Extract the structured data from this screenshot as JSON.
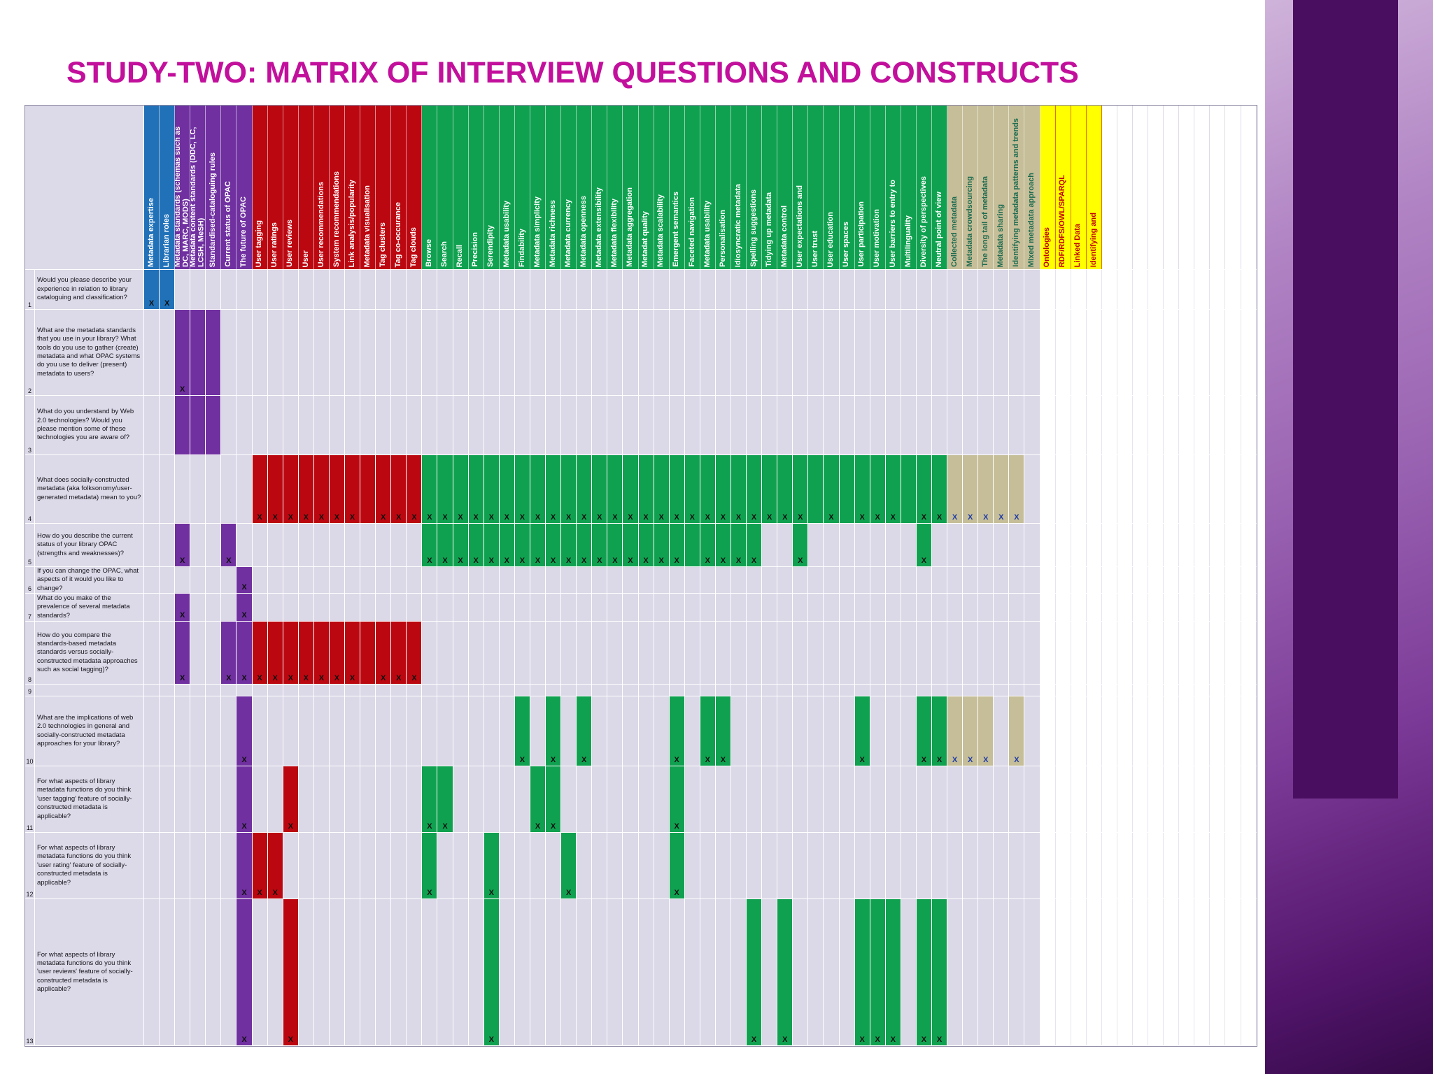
{
  "slide": {
    "title": "STUDY-TWO: MATRIX OF INTERVIEW QUESTIONS AND CONSTRUCTS",
    "title_color": "#C2109C"
  },
  "matrix": {
    "mark_glyph": "X",
    "colors": {
      "mark": "#101010",
      "mark_tan": "#1F3BA8",
      "body_cell": "#DBD8E7"
    },
    "groups": {
      "blue": {
        "color": "#2171B8",
        "text_color": "#FFFFFF"
      },
      "purple": {
        "color": "#7030A0",
        "text_color": "#FFFFFF"
      },
      "red": {
        "color": "#BB0710",
        "text_color": "#FFFFFF"
      },
      "green": {
        "color": "#10A150",
        "text_color": "#FFFFFF"
      },
      "tan": {
        "color": "#C5BE98",
        "text_color": "#1E6B50"
      },
      "yellow": {
        "color": "#FFFF00",
        "text_color": "#C00000"
      },
      "plain": {
        "color": "#FFFFFF",
        "text_color": "#333333"
      }
    },
    "columns": [
      {
        "label": "Metadata expertise",
        "group": "blue"
      },
      {
        "label": "Librarian roles",
        "group": "blue"
      },
      {
        "label": "Metadata standards (schemas such as DC, MARC, MODS)",
        "group": "purple"
      },
      {
        "label": "Metadata content standards (DDC, LC, LCSH, MeSH)",
        "group": "purple"
      },
      {
        "label": "Standardised-cataloguing rules",
        "group": "purple"
      },
      {
        "label": "Current status of OPAC",
        "group": "purple"
      },
      {
        "label": "The future of OPAC",
        "group": "purple"
      },
      {
        "label": "User tagging",
        "group": "red"
      },
      {
        "label": "User ratings",
        "group": "red"
      },
      {
        "label": "User reviews",
        "group": "red"
      },
      {
        "label": "User",
        "group": "red"
      },
      {
        "label": "User recommendations",
        "group": "red"
      },
      {
        "label": "System recommendations",
        "group": "red"
      },
      {
        "label": "Link analysis/popularity",
        "group": "red"
      },
      {
        "label": "Metadata visualisation",
        "group": "red"
      },
      {
        "label": "Tag clusters",
        "group": "red"
      },
      {
        "label": "Tag co-occurance",
        "group": "red"
      },
      {
        "label": "Tag clouds",
        "group": "red"
      },
      {
        "label": "Browse",
        "group": "green"
      },
      {
        "label": "Search",
        "group": "green"
      },
      {
        "label": "Recall",
        "group": "green"
      },
      {
        "label": "Precision",
        "group": "green"
      },
      {
        "label": "Serendipity",
        "group": "green"
      },
      {
        "label": "Metadata usability",
        "group": "green"
      },
      {
        "label": "Findability",
        "group": "green"
      },
      {
        "label": "Metadata simplicity",
        "group": "green"
      },
      {
        "label": "Metadata richness",
        "group": "green"
      },
      {
        "label": "Metadata currency",
        "group": "green"
      },
      {
        "label": "Metadata openness",
        "group": "green"
      },
      {
        "label": "Metadata extensibility",
        "group": "green"
      },
      {
        "label": "Metadata flexibility",
        "group": "green"
      },
      {
        "label": "Metadata aggregation",
        "group": "green"
      },
      {
        "label": "Metadat quality",
        "group": "green"
      },
      {
        "label": "Metadata scalability",
        "group": "green"
      },
      {
        "label": "Emergent semantics",
        "group": "green"
      },
      {
        "label": "Faceted navigation",
        "group": "green"
      },
      {
        "label": "Metadata usability",
        "group": "green"
      },
      {
        "label": "Personalisation",
        "group": "green"
      },
      {
        "label": "Idiosyncratic metadata",
        "group": "green"
      },
      {
        "label": "Spelling suggestions",
        "group": "green"
      },
      {
        "label": "Tidying up metadata",
        "group": "green"
      },
      {
        "label": "Metadata control",
        "group": "green"
      },
      {
        "label": "User expectations and",
        "group": "green"
      },
      {
        "label": "User trust",
        "group": "green"
      },
      {
        "label": "User education",
        "group": "green"
      },
      {
        "label": "User spaces",
        "group": "green"
      },
      {
        "label": "User participation",
        "group": "green"
      },
      {
        "label": "User motivation",
        "group": "green"
      },
      {
        "label": "User barriers to entry to",
        "group": "green"
      },
      {
        "label": "Multilinguality",
        "group": "green"
      },
      {
        "label": "Diversity of perspectives",
        "group": "green"
      },
      {
        "label": "Neutral point of view",
        "group": "green"
      },
      {
        "label": "Collected metadata",
        "group": "tan"
      },
      {
        "label": "Metadata crowdsourcing",
        "group": "tan"
      },
      {
        "label": "The long tail of metadata",
        "group": "tan"
      },
      {
        "label": "Metadata sharing",
        "group": "tan"
      },
      {
        "label": "Identifying metadata patterns and trends",
        "group": "tan"
      },
      {
        "label": "Mixed metadata approach",
        "group": "tan"
      },
      {
        "label": "Ontologies",
        "group": "yellow"
      },
      {
        "label": "RDF/RDFS/OWL/SPARQL",
        "group": "yellow"
      },
      {
        "label": "Linked Data",
        "group": "yellow"
      },
      {
        "label": "Identifying and",
        "group": "yellow"
      },
      {
        "label": "",
        "group": "plain"
      },
      {
        "label": "",
        "group": "plain"
      },
      {
        "label": "",
        "group": "plain"
      },
      {
        "label": "",
        "group": "plain"
      },
      {
        "label": "",
        "group": "plain"
      },
      {
        "label": "",
        "group": "plain"
      },
      {
        "label": "",
        "group": "plain"
      },
      {
        "label": "",
        "group": "plain"
      },
      {
        "label": "",
        "group": "plain"
      },
      {
        "label": "",
        "group": "plain"
      }
    ],
    "rows": [
      {
        "num": "1",
        "question": "Would you please describe your experience in relation to library cataloguing and classification?",
        "marks": [
          0,
          1
        ],
        "bands": [
          {
            "from": 0,
            "to": 1,
            "group": "blue"
          }
        ]
      },
      {
        "num": "2",
        "question": "What are the metadata standards that you use in your library? What tools do you use to gather (create) metadata and what OPAC systems do you use to deliver (present) metadata to users?",
        "marks": [
          2
        ],
        "bands": [
          {
            "from": 2,
            "to": 4,
            "group": "purple"
          }
        ]
      },
      {
        "num": "3",
        "question": "What do you understand by Web 2.0 technologies? Would you please mention some of these technologies you are aware of?",
        "marks": [],
        "bands": [
          {
            "from": 2,
            "to": 4,
            "group": "purple"
          }
        ]
      },
      {
        "num": "4",
        "question": "What does socially-constructed metadata (aka folksonomy/user-generated metadata) mean to you?",
        "marks": [
          7,
          8,
          9,
          10,
          11,
          12,
          13,
          15,
          16,
          17,
          18,
          19,
          20,
          21,
          22,
          23,
          24,
          25,
          26,
          27,
          28,
          29,
          30,
          31,
          32,
          33,
          34,
          35,
          36,
          37,
          38,
          39,
          40,
          41,
          42,
          44,
          46,
          47,
          48,
          50,
          51,
          52,
          53,
          54,
          55,
          56
        ],
        "bands": [
          {
            "from": 7,
            "to": 17,
            "group": "red"
          },
          {
            "from": 18,
            "to": 51,
            "group": "green"
          },
          {
            "from": 52,
            "to": 56,
            "group": "tan"
          }
        ]
      },
      {
        "num": "5",
        "question": "How do you describe the current status of your library OPAC (strengths and  weaknesses)?",
        "marks": [
          2,
          5,
          18,
          19,
          20,
          21,
          22,
          23,
          24,
          25,
          26,
          27,
          28,
          29,
          30,
          31,
          32,
          33,
          34,
          36,
          37,
          38,
          39,
          42,
          50
        ],
        "bands": [
          {
            "from": 18,
            "to": 39,
            "group": "green"
          }
        ]
      },
      {
        "num": "6",
        "question": "If you can change the OPAC, what aspects of it would you like to change?",
        "marks": [
          6
        ],
        "bands": []
      },
      {
        "num": "7",
        "question": "What do you make of the prevalence of several metadata standards?",
        "marks": [
          2,
          6
        ],
        "bands": []
      },
      {
        "num": "8",
        "question": "How do you compare the standards-based metadata standards versus socially-constructed metadata approaches such as social tagging)?",
        "marks": [
          2,
          5,
          6,
          7,
          8,
          9,
          10,
          11,
          12,
          13,
          15,
          16,
          17
        ],
        "bands": [
          {
            "from": 7,
            "to": 17,
            "group": "red"
          }
        ]
      },
      {
        "num": "9",
        "question": "",
        "marks": [],
        "bands": []
      },
      {
        "num": "10",
        "question": "What are the implications of web 2.0 technologies in general and socially-constructed metadata approaches for your library?",
        "marks": [
          6,
          24,
          26,
          28,
          34,
          36,
          37,
          46,
          50,
          51,
          52,
          53,
          54,
          56
        ],
        "bands": []
      },
      {
        "num": "11",
        "question": "For what aspects of library metadata functions do you think 'user tagging' feature of socially-constructed metadata is applicable?",
        "marks": [
          6,
          9,
          18,
          19,
          25,
          26,
          34
        ],
        "bands": []
      },
      {
        "num": "12",
        "question": "For what aspects of library metadata functions do you think 'user rating' feature of socially-constructed metadata is applicable?",
        "marks": [
          6,
          7,
          8,
          18,
          22,
          27,
          34
        ],
        "bands": []
      },
      {
        "num": "13",
        "question": "For what aspects of library metadata functions do you think 'user reviews' feature of socially-constructed metadata is applicable?",
        "marks": [
          6,
          9,
          22,
          39,
          41,
          46,
          47,
          48,
          50,
          51
        ],
        "bands": []
      }
    ]
  }
}
